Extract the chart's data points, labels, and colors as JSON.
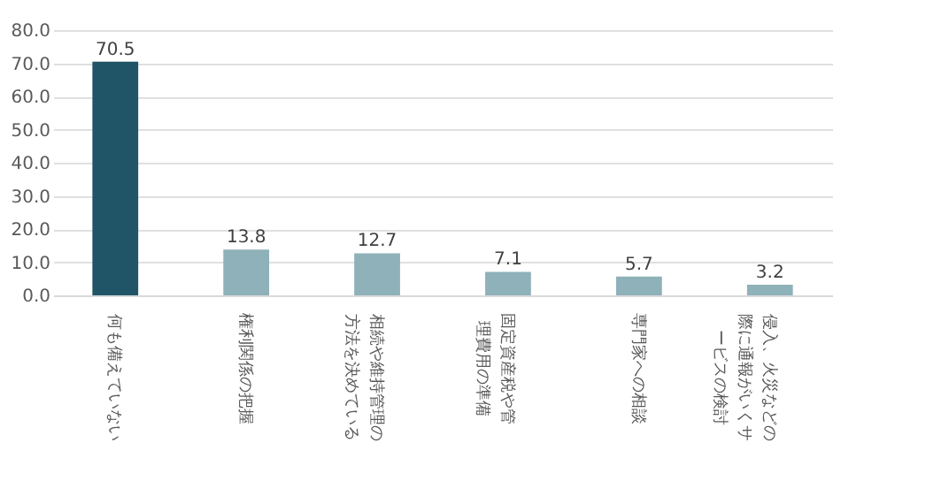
{
  "chart_data": {
    "type": "bar",
    "categories": [
      "何も備えていない",
      "権利関係の把握",
      "相続や維持管理の方法を決めている",
      "固定資産税や管理費用の準備",
      "専門家への相談",
      "侵入、火災などの際に通報がいくサービスの検討"
    ],
    "values": [
      70.5,
      13.8,
      12.7,
      7.1,
      5.7,
      3.2
    ],
    "colors": [
      "#1f5566",
      "#8fb1b9",
      "#8fb1b9",
      "#8fb1b9",
      "#8fb1b9",
      "#8fb1b9"
    ],
    "ylim": [
      0,
      80
    ],
    "yticks": [
      {
        "value": 0,
        "label": "0.0"
      },
      {
        "value": 10,
        "label": "10.0"
      },
      {
        "value": 20,
        "label": "20.0"
      },
      {
        "value": 30,
        "label": "30.0"
      },
      {
        "value": 40,
        "label": "40.0"
      },
      {
        "value": 50,
        "label": "50.0"
      },
      {
        "value": 60,
        "label": "60.0"
      },
      {
        "value": 70,
        "label": "70.0"
      },
      {
        "value": 80,
        "label": "80.0"
      }
    ],
    "grid": "y",
    "data_labels": true
  }
}
